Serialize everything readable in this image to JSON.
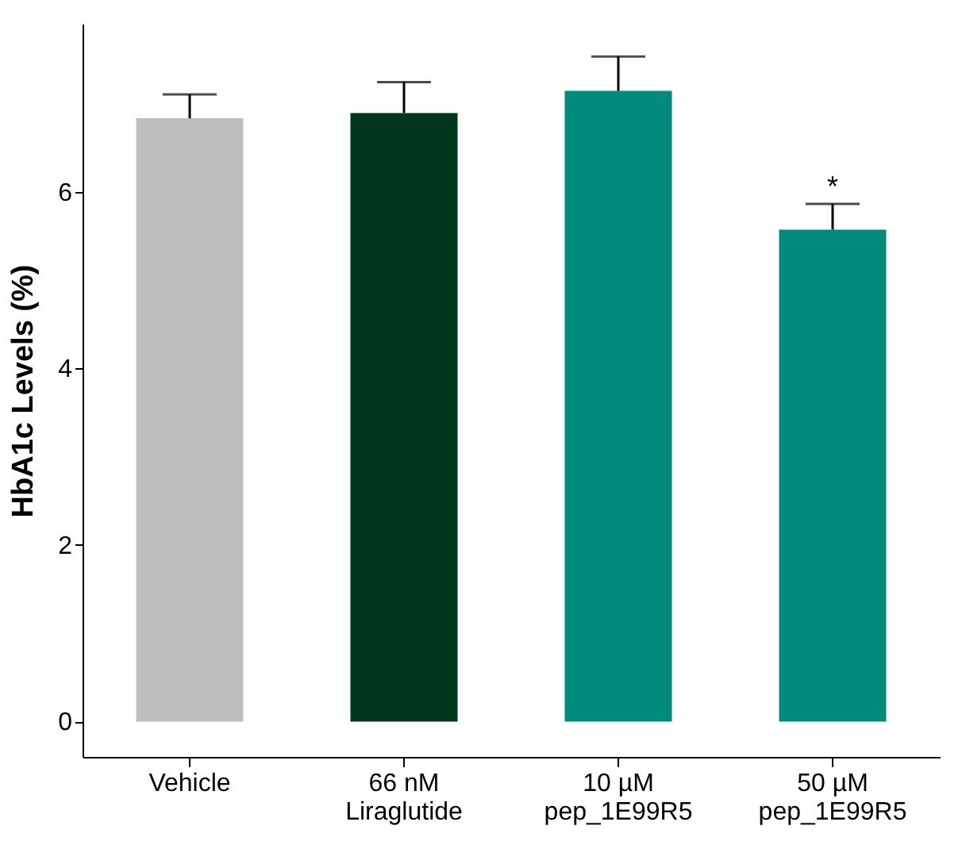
{
  "chart_data": {
    "type": "bar",
    "ylabel": "HbA1c Levels (%)",
    "categories": [
      "Vehicle",
      "66 nM\nLiraglutide",
      "10 µM\npep_1E99R5",
      "50 µM\npep_1E99R5"
    ],
    "values": [
      6.83,
      6.89,
      7.14,
      5.57
    ],
    "colors": [
      "#bebebe",
      "#02361f",
      "#008b7a",
      "#008b7a"
    ],
    "errors": [
      [
        6.83,
        7.1
      ],
      [
        6.89,
        7.24
      ],
      [
        7.14,
        7.53
      ],
      [
        5.57,
        5.86
      ]
    ],
    "ylim": [
      -0.4,
      7.9
    ],
    "yticks": [
      0,
      2,
      4,
      6
    ],
    "grid": false,
    "annotations": [
      {
        "text": "*",
        "x": "50 µM\npep_1E99R5",
        "y": 5.86
      }
    ]
  }
}
